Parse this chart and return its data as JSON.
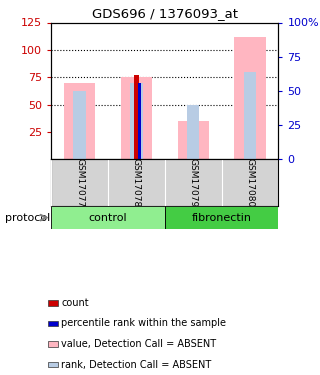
{
  "title": "GDS696 / 1376093_at",
  "samples": [
    "GSM17077",
    "GSM17078",
    "GSM17079",
    "GSM17080"
  ],
  "groups": [
    "control",
    "control",
    "fibronectin",
    "fibronectin"
  ],
  "ylim_left": [
    0,
    125
  ],
  "ylim_right": [
    0,
    100
  ],
  "yticks_left": [
    25,
    50,
    75,
    100,
    125
  ],
  "ytick_labels_left": [
    "25",
    "50",
    "75",
    "100",
    "125"
  ],
  "yticks_right": [
    0,
    25,
    50,
    75,
    100
  ],
  "ytick_labels_right": [
    "0",
    "25",
    "50",
    "75",
    "100%"
  ],
  "dotted_lines": [
    50,
    75,
    100
  ],
  "value_bars": [
    70,
    75,
    35,
    112
  ],
  "rank_bars": [
    62,
    70,
    50,
    80
  ],
  "count_bars": [
    0,
    77,
    0,
    0
  ],
  "pct_rank_bars": [
    0,
    70,
    0,
    0
  ],
  "value_color": "#FFB6C1",
  "rank_color": "#B8CCE4",
  "count_color": "#CC0000",
  "pct_rank_color": "#0000CC",
  "left_tick_color": "#CC0000",
  "right_tick_color": "#0000CC",
  "bg_color": "#ffffff",
  "sample_area_color": "#D3D3D3",
  "control_color": "#90EE90",
  "fibronectin_color": "#44CC44",
  "control_label": "control",
  "fibronectin_label": "fibronectin",
  "protocol_label": "protocol",
  "legend_items": [
    [
      "#CC0000",
      "count"
    ],
    [
      "#0000CC",
      "percentile rank within the sample"
    ],
    [
      "#FFB6C1",
      "value, Detection Call = ABSENT"
    ],
    [
      "#B8CCE4",
      "rank, Detection Call = ABSENT"
    ]
  ]
}
